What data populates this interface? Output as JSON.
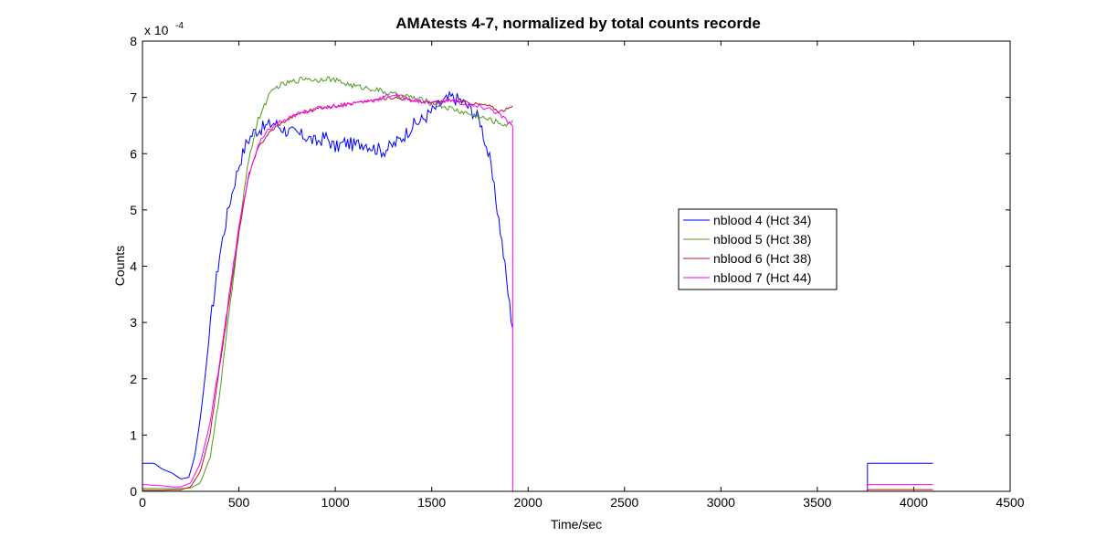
{
  "chart_data": {
    "type": "line",
    "title": "AMAtests 4-7, normalized by total counts recorde",
    "xlabel": "Time/sec",
    "ylabel": "Counts",
    "y_exponent_label": "x 10",
    "y_exponent_power": "-4",
    "xlim": [
      0,
      4500
    ],
    "ylim": [
      0,
      8
    ],
    "xticks": [
      0,
      500,
      1000,
      1500,
      2000,
      2500,
      3000,
      3500,
      4000,
      4500
    ],
    "yticks": [
      0,
      1,
      2,
      3,
      4,
      5,
      6,
      7,
      8
    ],
    "grid": false,
    "legend_position": "center-right",
    "series": [
      {
        "name": "nblood 4 (Hct 34)",
        "color": "#0000ff",
        "noise": 0.25,
        "points": [
          [
            0,
            0.5
          ],
          [
            60,
            0.5
          ],
          [
            100,
            0.4
          ],
          [
            150,
            0.33
          ],
          [
            200,
            0.22
          ],
          [
            240,
            0.25
          ],
          [
            270,
            0.6
          ],
          [
            300,
            1.3
          ],
          [
            330,
            2.2
          ],
          [
            360,
            3.2
          ],
          [
            400,
            4.2
          ],
          [
            450,
            5.1
          ],
          [
            500,
            5.8
          ],
          [
            540,
            6.2
          ],
          [
            580,
            6.4
          ],
          [
            620,
            6.45
          ],
          [
            680,
            6.55
          ],
          [
            750,
            6.4
          ],
          [
            800,
            6.35
          ],
          [
            850,
            6.3
          ],
          [
            900,
            6.2
          ],
          [
            950,
            6.3
          ],
          [
            1000,
            6.1
          ],
          [
            1050,
            6.2
          ],
          [
            1100,
            6.15
          ],
          [
            1150,
            6.2
          ],
          [
            1200,
            6.1
          ],
          [
            1250,
            6.05
          ],
          [
            1300,
            6.15
          ],
          [
            1350,
            6.3
          ],
          [
            1400,
            6.5
          ],
          [
            1450,
            6.6
          ],
          [
            1500,
            6.75
          ],
          [
            1550,
            6.9
          ],
          [
            1600,
            7.0
          ],
          [
            1650,
            6.95
          ],
          [
            1700,
            6.8
          ],
          [
            1750,
            6.6
          ],
          [
            1800,
            5.9
          ],
          [
            1850,
            4.8
          ],
          [
            1880,
            4.0
          ],
          [
            1900,
            3.4
          ],
          [
            1920,
            2.9
          ]
        ]
      },
      {
        "name": "nblood 5 (Hct 38)",
        "color": "#4f9a1e",
        "noise": 0.1,
        "points": [
          [
            0,
            0.05
          ],
          [
            100,
            0.05
          ],
          [
            200,
            0.05
          ],
          [
            250,
            0.06
          ],
          [
            300,
            0.15
          ],
          [
            350,
            0.6
          ],
          [
            400,
            1.7
          ],
          [
            450,
            3.2
          ],
          [
            500,
            4.6
          ],
          [
            550,
            5.9
          ],
          [
            600,
            6.6
          ],
          [
            650,
            7.0
          ],
          [
            700,
            7.2
          ],
          [
            750,
            7.25
          ],
          [
            800,
            7.3
          ],
          [
            850,
            7.35
          ],
          [
            900,
            7.3
          ],
          [
            950,
            7.35
          ],
          [
            1000,
            7.3
          ],
          [
            1100,
            7.2
          ],
          [
            1200,
            7.15
          ],
          [
            1300,
            7.05
          ],
          [
            1400,
            7.0
          ],
          [
            1500,
            6.9
          ],
          [
            1600,
            6.8
          ],
          [
            1700,
            6.7
          ],
          [
            1800,
            6.6
          ],
          [
            1900,
            6.5
          ],
          [
            1920,
            6.6
          ]
        ]
      },
      {
        "name": "nblood 6 (Hct 38)",
        "color": "#b01c1c",
        "noise": 0.05,
        "points": [
          [
            0,
            0.02
          ],
          [
            100,
            0.02
          ],
          [
            200,
            0.03
          ],
          [
            250,
            0.08
          ],
          [
            300,
            0.35
          ],
          [
            350,
            1.0
          ],
          [
            400,
            2.2
          ],
          [
            450,
            3.4
          ],
          [
            500,
            4.6
          ],
          [
            550,
            5.6
          ],
          [
            600,
            6.1
          ],
          [
            650,
            6.35
          ],
          [
            700,
            6.5
          ],
          [
            750,
            6.6
          ],
          [
            800,
            6.7
          ],
          [
            850,
            6.75
          ],
          [
            900,
            6.8
          ],
          [
            1000,
            6.85
          ],
          [
            1100,
            6.9
          ],
          [
            1200,
            6.95
          ],
          [
            1300,
            7.0
          ],
          [
            1400,
            6.95
          ],
          [
            1500,
            6.9
          ],
          [
            1600,
            6.95
          ],
          [
            1700,
            6.9
          ],
          [
            1800,
            6.85
          ],
          [
            1850,
            6.75
          ],
          [
            1900,
            6.8
          ],
          [
            1920,
            6.85
          ]
        ]
      },
      {
        "name": "nblood 7 (Hct 44)",
        "color": "#ff00ff",
        "noise": 0.08,
        "points": [
          [
            0,
            0.12
          ],
          [
            100,
            0.1
          ],
          [
            150,
            0.08
          ],
          [
            200,
            0.08
          ],
          [
            250,
            0.15
          ],
          [
            300,
            0.5
          ],
          [
            350,
            1.2
          ],
          [
            400,
            2.3
          ],
          [
            450,
            3.5
          ],
          [
            500,
            4.7
          ],
          [
            550,
            5.6
          ],
          [
            600,
            6.15
          ],
          [
            650,
            6.4
          ],
          [
            700,
            6.55
          ],
          [
            750,
            6.6
          ],
          [
            800,
            6.7
          ],
          [
            850,
            6.75
          ],
          [
            900,
            6.8
          ],
          [
            1000,
            6.85
          ],
          [
            1100,
            6.9
          ],
          [
            1200,
            6.95
          ],
          [
            1300,
            7.05
          ],
          [
            1400,
            6.95
          ],
          [
            1500,
            6.9
          ],
          [
            1600,
            6.95
          ],
          [
            1700,
            6.85
          ],
          [
            1800,
            6.8
          ],
          [
            1850,
            6.7
          ],
          [
            1900,
            6.55
          ],
          [
            1920,
            6.5
          ]
        ]
      }
    ],
    "drop_x": 1920,
    "tail": {
      "x_start": 3760,
      "x_end": 4100,
      "levels": [
        {
          "series": "nblood 4 (Hct 34)",
          "y": 0.5
        },
        {
          "series": "nblood 7 (Hct 44)",
          "y": 0.12
        },
        {
          "series": "nblood 6 (Hct 38)",
          "y": 0.03
        }
      ]
    }
  }
}
